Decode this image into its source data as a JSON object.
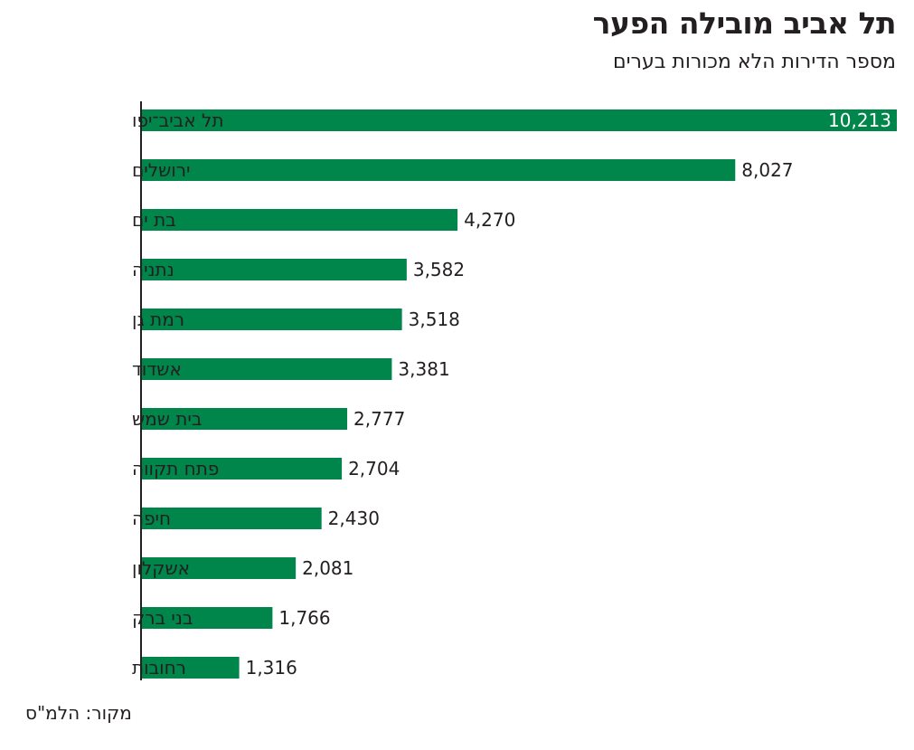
{
  "chart_data": {
    "type": "bar",
    "orientation": "horizontal",
    "title": "תל אביב מובילה הפער",
    "subtitle": "מספר הדירות הלא מכורות בערים",
    "categories": [
      "תל אביב־יפו",
      "ירושלים",
      "בת ים",
      "נתניה",
      "רמת גן",
      "אשדוד",
      "בית שמש",
      "פתח תקווה",
      "חיפה",
      "אשקלון",
      "בני ברק",
      "רחובות"
    ],
    "values": [
      10213,
      8027,
      4270,
      3582,
      3518,
      3381,
      2777,
      2704,
      2430,
      2081,
      1766,
      1316
    ],
    "value_labels": [
      "10,213",
      "8,027",
      "4,270",
      "3,582",
      "3,518",
      "3,381",
      "2,777",
      "2,704",
      "2,430",
      "2,081",
      "1,766",
      "1,316"
    ],
    "xlim": [
      0,
      10213
    ],
    "source": "מקור: הלמ\"ס",
    "bar_color": "#00854a",
    "grid": false
  }
}
